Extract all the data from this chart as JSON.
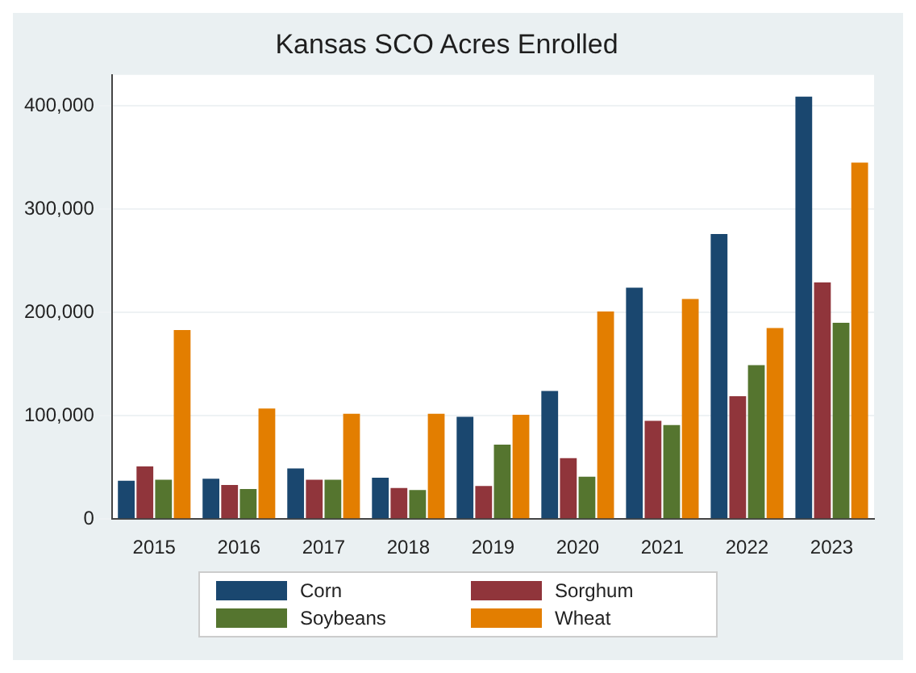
{
  "chart_data": {
    "type": "bar",
    "title": "Kansas SCO Acres Enrolled",
    "categories": [
      "2015",
      "2016",
      "2017",
      "2018",
      "2019",
      "2020",
      "2021",
      "2022",
      "2023"
    ],
    "series": [
      {
        "name": "Corn",
        "color": "#1a476f",
        "values": [
          37000,
          39000,
          49000,
          40000,
          99000,
          124000,
          224000,
          276000,
          409000
        ]
      },
      {
        "name": "Sorghum",
        "color": "#90353b",
        "values": [
          51000,
          33000,
          38000,
          30000,
          32000,
          59000,
          95000,
          119000,
          229000
        ]
      },
      {
        "name": "Soybeans",
        "color": "#55752f",
        "values": [
          38000,
          29000,
          38000,
          28000,
          72000,
          41000,
          91000,
          149000,
          190000
        ]
      },
      {
        "name": "Wheat",
        "color": "#e37e00",
        "values": [
          183000,
          107000,
          102000,
          102000,
          101000,
          201000,
          213000,
          185000,
          345000
        ]
      }
    ],
    "ylim": [
      0,
      430000
    ],
    "yticks": [
      0,
      {
        "value": 100000,
        "label": "100,000"
      },
      {
        "value": 200000,
        "label": "200,000"
      },
      {
        "value": 300000,
        "label": "300,000"
      },
      {
        "value": 400000,
        "label": "400,000"
      }
    ],
    "grid": "y",
    "legend": "bottom"
  }
}
